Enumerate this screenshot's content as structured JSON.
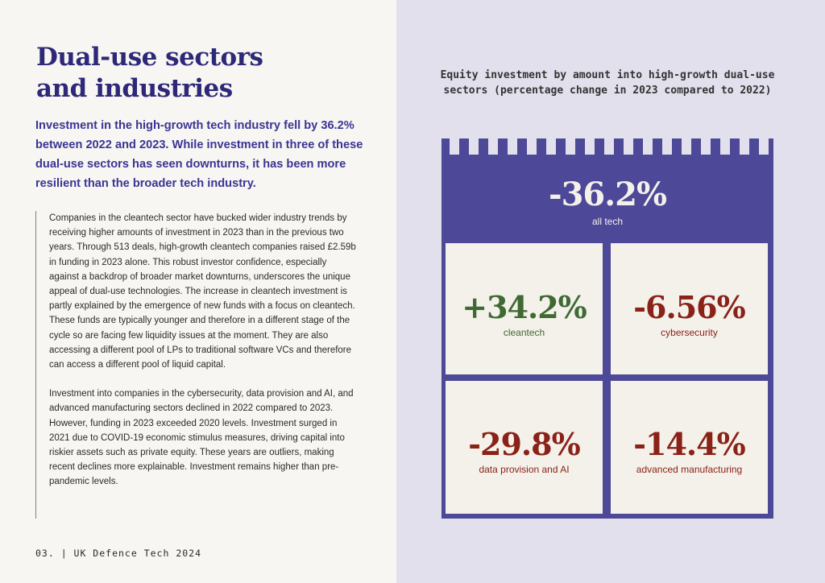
{
  "page": {
    "title_line1": "Dual-use sectors",
    "title_line2": "and industries",
    "lead": "Investment in the high-growth tech industry fell by 36.2% between 2022 and 2023. While investment in three of these dual-use sectors has seen downturns, it has been more resilient than the broader tech industry.",
    "paragraph1": "Companies in the cleantech sector have bucked wider industry trends by receiving higher amounts of investment in 2023 than in the previous two years. Through 513 deals, high-growth cleantech companies raised £2.59b in funding in 2023 alone. This robust investor confidence, especially against a backdrop of broader market downturns, underscores the unique appeal of dual-use technologies. The increase in cleantech investment is partly explained by the emergence of new funds with a focus on cleantech. These funds are typically younger and therefore in a different stage of the cycle so are facing few liquidity issues at the moment. They are also accessing a different pool of LPs to traditional software VCs and therefore can access a different pool of liquid capital.",
    "paragraph2": "Investment into companies in the cybersecurity, data provision and AI, and advanced manufacturing sectors declined in 2022 compared to 2023. However, funding in 2023 exceeded 2020 levels. Investment surged in 2021 due to COVID-19 economic stimulus measures, driving capital into riskier assets such as private equity. These years are outliers, making recent declines more explainable. Investment remains higher than pre-pandemic levels.",
    "footer": "03. | UK Defence Tech 2024"
  },
  "chart_data": {
    "type": "table",
    "title": "Equity investment by amount into high-growth dual-use sectors (percentage change in 2023 compared to 2022)",
    "headline": {
      "value": "-36.2%",
      "label": "all tech"
    },
    "sectors": [
      {
        "value": "+34.2%",
        "label": "cleantech"
      },
      {
        "value": "-6.56%",
        "label": "cybersecurity"
      },
      {
        "value": "-29.8%",
        "label": "data provision and AI"
      },
      {
        "value": "-14.4%",
        "label": "advanced manufacturing"
      }
    ]
  },
  "colors": {
    "title": "#2d2878",
    "lead": "#3a3494",
    "panel": "#4d4897",
    "cell": "#f4f1ea",
    "positive": "#3f6a34",
    "negative": "#8a2218"
  }
}
